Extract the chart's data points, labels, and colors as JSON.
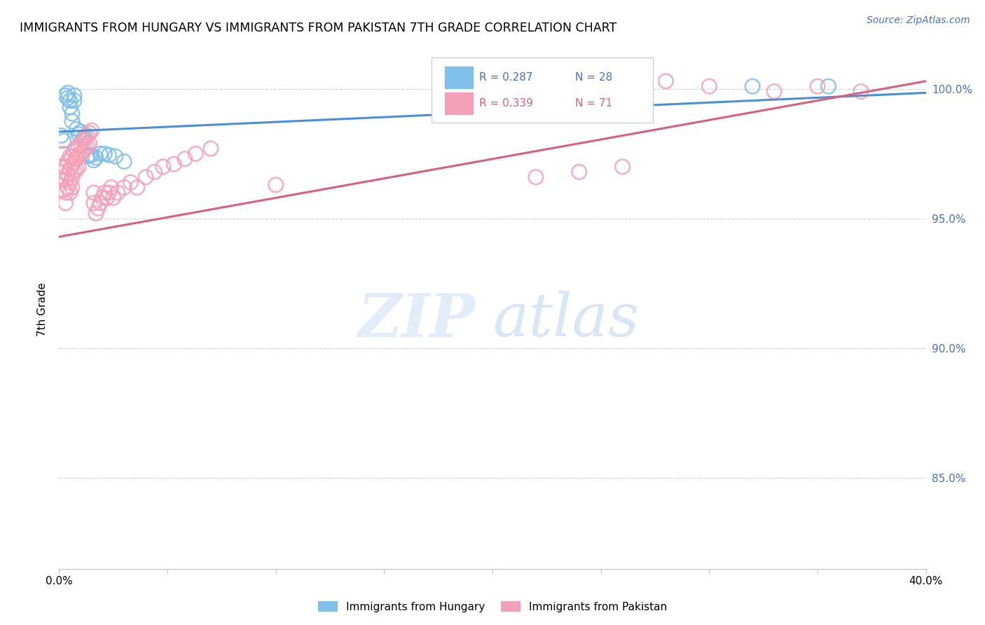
{
  "title": "IMMIGRANTS FROM HUNGARY VS IMMIGRANTS FROM PAKISTAN 7TH GRADE CORRELATION CHART",
  "source": "Source: ZipAtlas.com",
  "ylabel": "7th Grade",
  "ytick_labels": [
    "100.0%",
    "95.0%",
    "90.0%",
    "85.0%"
  ],
  "ytick_values": [
    1.0,
    0.95,
    0.9,
    0.85
  ],
  "xlim": [
    0.0,
    0.4
  ],
  "ylim": [
    0.815,
    1.015
  ],
  "hungary_color": "#7fbfea",
  "pakistan_color": "#f4a0b8",
  "hungary_line_color": "#4a90d9",
  "pakistan_line_color": "#d9607a",
  "legend_r_hungary": "R = 0.287",
  "legend_n_hungary": "N = 28",
  "legend_r_pakistan": "R = 0.339",
  "legend_n_pakistan": "N = 71",
  "watermark_zip": "ZIP",
  "watermark_atlas": "atlas",
  "hungary_points_x": [
    0.001,
    0.002,
    0.003,
    0.004,
    0.004,
    0.005,
    0.005,
    0.006,
    0.006,
    0.007,
    0.007,
    0.008,
    0.009,
    0.01,
    0.011,
    0.012,
    0.013,
    0.014,
    0.015,
    0.016,
    0.017,
    0.019,
    0.021,
    0.023,
    0.026,
    0.03,
    0.32,
    0.355
  ],
  "hungary_points_y": [
    0.982,
    0.98,
    0.9975,
    0.9985,
    0.9965,
    0.9955,
    0.993,
    0.9905,
    0.9875,
    0.9975,
    0.9955,
    0.9845,
    0.9825,
    0.9835,
    0.981,
    0.9815,
    0.974,
    0.9745,
    0.9745,
    0.9725,
    0.9735,
    0.975,
    0.975,
    0.9745,
    0.974,
    0.972,
    1.001,
    1.001
  ],
  "pakistan_points_x": [
    0.001,
    0.001,
    0.002,
    0.002,
    0.002,
    0.003,
    0.003,
    0.003,
    0.003,
    0.004,
    0.004,
    0.004,
    0.005,
    0.005,
    0.005,
    0.005,
    0.006,
    0.006,
    0.006,
    0.006,
    0.007,
    0.007,
    0.007,
    0.008,
    0.008,
    0.008,
    0.009,
    0.009,
    0.009,
    0.01,
    0.01,
    0.011,
    0.011,
    0.012,
    0.012,
    0.013,
    0.013,
    0.014,
    0.014,
    0.015,
    0.016,
    0.016,
    0.017,
    0.018,
    0.019,
    0.02,
    0.021,
    0.022,
    0.023,
    0.024,
    0.025,
    0.027,
    0.03,
    0.033,
    0.036,
    0.04,
    0.044,
    0.048,
    0.053,
    0.058,
    0.063,
    0.07,
    0.28,
    0.3,
    0.33,
    0.35,
    0.37,
    0.22,
    0.24,
    0.26,
    0.1
  ],
  "pakistan_points_y": [
    0.97,
    0.965,
    0.975,
    0.968,
    0.961,
    0.97,
    0.965,
    0.96,
    0.956,
    0.972,
    0.967,
    0.962,
    0.974,
    0.969,
    0.964,
    0.96,
    0.974,
    0.97,
    0.966,
    0.962,
    0.976,
    0.972,
    0.968,
    0.977,
    0.973,
    0.969,
    0.978,
    0.974,
    0.97,
    0.979,
    0.975,
    0.98,
    0.976,
    0.981,
    0.977,
    0.982,
    0.978,
    0.983,
    0.979,
    0.984,
    0.96,
    0.956,
    0.952,
    0.954,
    0.956,
    0.958,
    0.96,
    0.958,
    0.96,
    0.962,
    0.958,
    0.96,
    0.962,
    0.964,
    0.962,
    0.966,
    0.968,
    0.97,
    0.971,
    0.973,
    0.975,
    0.977,
    1.003,
    1.001,
    0.999,
    1.001,
    0.999,
    0.966,
    0.968,
    0.97,
    0.963
  ],
  "hungary_trend_x0": 0.0,
  "hungary_trend_y0": 0.9835,
  "hungary_trend_x1": 0.4,
  "hungary_trend_y1": 0.9985,
  "pakistan_trend_x0": 0.0,
  "pakistan_trend_y0": 0.943,
  "pakistan_trend_x1": 0.4,
  "pakistan_trend_y1": 1.003
}
